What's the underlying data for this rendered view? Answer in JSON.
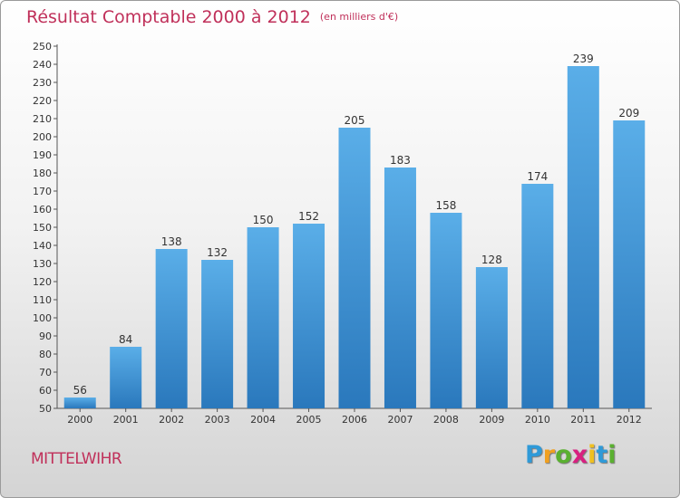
{
  "title": "Résultat Comptable 2000 à 2012",
  "subtitle": "(en milliers d'€)",
  "city": "MITTELWIHR",
  "logo": {
    "letters": [
      "P",
      "r",
      "o",
      "x",
      "i",
      "t",
      "i"
    ],
    "colors": [
      "#2f9ad8",
      "#f0a020",
      "#5ab030",
      "#d82080",
      "#f0c020",
      "#2f9ad8",
      "#5ab030"
    ]
  },
  "colors": {
    "bar_top": "#5aaee8",
    "bar_bottom": "#2a78bc",
    "title": "#c0305a"
  },
  "chart_data": {
    "type": "bar",
    "categories": [
      "2000",
      "2001",
      "2002",
      "2003",
      "2004",
      "2005",
      "2006",
      "2007",
      "2008",
      "2009",
      "2010",
      "2011",
      "2012"
    ],
    "values": [
      56,
      84,
      138,
      132,
      150,
      152,
      205,
      183,
      158,
      128,
      174,
      239,
      209
    ],
    "ylim": [
      50,
      250
    ],
    "ytick_step": 10,
    "grid": false,
    "data_labels": true
  }
}
